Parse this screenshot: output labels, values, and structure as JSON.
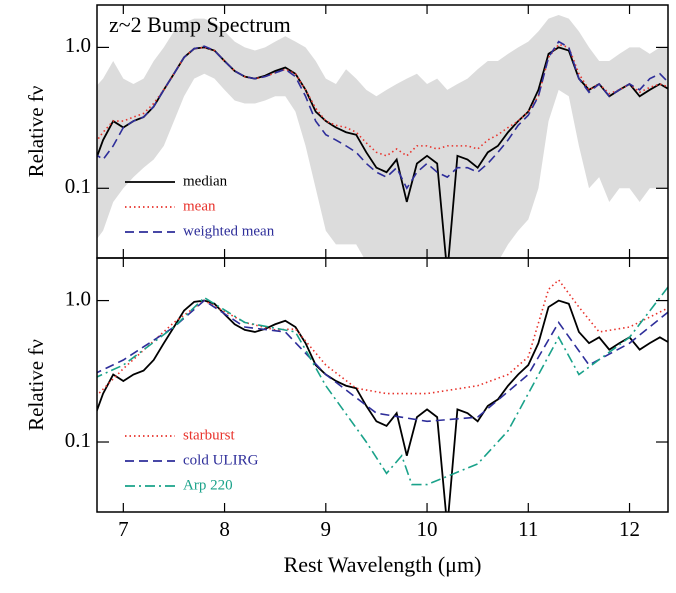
{
  "chart_data": [
    {
      "type": "line",
      "title": "z~2 Bump Spectrum",
      "ylabel": "Relative fν",
      "log_y": true,
      "legend": "lower left",
      "xlim": [
        6.74,
        12.38
      ],
      "xticks": [
        7,
        8,
        9,
        10,
        11,
        12
      ],
      "ylim": [
        0.032,
        2.0
      ],
      "yticks": [
        0.1,
        {
          "value": 1.0,
          "label": "1.0"
        }
      ],
      "x": [
        6.7,
        6.8,
        6.9,
        7.0,
        7.1,
        7.2,
        7.3,
        7.4,
        7.5,
        7.6,
        7.7,
        7.8,
        7.9,
        8.0,
        8.1,
        8.2,
        8.3,
        8.4,
        8.5,
        8.6,
        8.7,
        8.8,
        8.9,
        9.0,
        9.1,
        9.2,
        9.3,
        9.4,
        9.5,
        9.6,
        9.7,
        9.8,
        9.9,
        10.0,
        10.1,
        10.2,
        10.3,
        10.4,
        10.5,
        10.6,
        10.7,
        10.8,
        10.9,
        11.0,
        11.1,
        11.2,
        11.3,
        11.4,
        11.5,
        11.6,
        11.7,
        11.8,
        11.9,
        12.0,
        12.1,
        12.2,
        12.3,
        12.4
      ],
      "band": {
        "color": "#dcdcdc",
        "lower": [
          0.04,
          0.05,
          0.08,
          0.1,
          0.12,
          0.14,
          0.16,
          0.2,
          0.3,
          0.45,
          0.6,
          0.65,
          0.6,
          0.5,
          0.42,
          0.4,
          0.4,
          0.42,
          0.45,
          0.45,
          0.35,
          0.2,
          0.1,
          0.05,
          0.04,
          0.04,
          0.04,
          0.03,
          0.03,
          0.03,
          0.03,
          0.03,
          0.03,
          0.03,
          0.03,
          0.03,
          0.03,
          0.03,
          0.03,
          0.03,
          0.03,
          0.04,
          0.05,
          0.06,
          0.1,
          0.3,
          0.5,
          0.45,
          0.2,
          0.1,
          0.12,
          0.08,
          0.1,
          0.1,
          0.08,
          0.1,
          0.1,
          0.1
        ],
        "upper": [
          0.5,
          0.6,
          0.8,
          0.6,
          0.55,
          0.6,
          0.8,
          1.0,
          1.3,
          1.5,
          1.6,
          1.6,
          1.5,
          1.3,
          1.1,
          1.0,
          0.95,
          1.0,
          1.1,
          1.2,
          1.1,
          1.0,
          0.8,
          0.6,
          0.55,
          0.7,
          0.6,
          0.5,
          0.45,
          0.5,
          0.55,
          0.6,
          0.65,
          0.55,
          0.6,
          0.5,
          0.55,
          0.6,
          0.7,
          0.8,
          0.8,
          0.9,
          1.0,
          1.1,
          1.3,
          1.6,
          1.7,
          1.6,
          1.3,
          1.0,
          0.8,
          0.8,
          0.9,
          1.0,
          1.0,
          0.9,
          1.0,
          1.0
        ]
      },
      "series": [
        {
          "name": "median",
          "color": "#000000",
          "style": "solid",
          "values": [
            0.14,
            0.22,
            0.3,
            0.27,
            0.3,
            0.32,
            0.38,
            0.5,
            0.65,
            0.85,
            0.98,
            1.0,
            0.95,
            0.8,
            0.68,
            0.62,
            0.6,
            0.63,
            0.68,
            0.72,
            0.65,
            0.5,
            0.35,
            0.3,
            0.27,
            0.25,
            0.24,
            0.18,
            0.14,
            0.13,
            0.16,
            0.08,
            0.15,
            0.17,
            0.15,
            0.025,
            0.17,
            0.16,
            0.14,
            0.18,
            0.2,
            0.25,
            0.3,
            0.35,
            0.5,
            0.9,
            1.0,
            0.95,
            0.6,
            0.5,
            0.55,
            0.45,
            0.5,
            0.55,
            0.45,
            0.5,
            0.55,
            0.5
          ]
        },
        {
          "name": "mean",
          "color": "#e8322b",
          "style": "dotted",
          "values": [
            0.2,
            0.25,
            0.3,
            0.3,
            0.32,
            0.34,
            0.4,
            0.5,
            0.65,
            0.85,
            0.98,
            1.0,
            0.95,
            0.8,
            0.68,
            0.62,
            0.6,
            0.62,
            0.66,
            0.7,
            0.65,
            0.5,
            0.37,
            0.3,
            0.28,
            0.27,
            0.25,
            0.21,
            0.18,
            0.17,
            0.19,
            0.17,
            0.2,
            0.2,
            0.19,
            0.2,
            0.2,
            0.2,
            0.19,
            0.22,
            0.24,
            0.27,
            0.3,
            0.35,
            0.45,
            0.85,
            1.05,
            1.0,
            0.65,
            0.5,
            0.55,
            0.47,
            0.5,
            0.55,
            0.48,
            0.52,
            0.55,
            0.52
          ]
        },
        {
          "name": "weighted mean",
          "color": "#2e2e9a",
          "style": "dashed",
          "values": [
            0.18,
            0.16,
            0.2,
            0.27,
            0.3,
            0.32,
            0.38,
            0.5,
            0.65,
            0.85,
            0.98,
            1.02,
            0.95,
            0.8,
            0.68,
            0.62,
            0.6,
            0.62,
            0.66,
            0.7,
            0.62,
            0.45,
            0.3,
            0.24,
            0.22,
            0.2,
            0.18,
            0.15,
            0.13,
            0.12,
            0.14,
            0.1,
            0.13,
            0.15,
            0.13,
            0.12,
            0.14,
            0.14,
            0.13,
            0.15,
            0.18,
            0.22,
            0.28,
            0.33,
            0.45,
            0.85,
            1.1,
            1.0,
            0.6,
            0.48,
            0.55,
            0.45,
            0.5,
            0.55,
            0.5,
            0.6,
            0.65,
            0.55
          ]
        }
      ]
    },
    {
      "type": "line",
      "ylabel": "Relative fν",
      "xlabel": "Rest Wavelength (μm)",
      "log_y": true,
      "legend": "lower left",
      "xlim": [
        6.74,
        12.38
      ],
      "xticks": [
        7,
        8,
        9,
        10,
        11,
        12
      ],
      "ylim": [
        0.032,
        2.0
      ],
      "yticks": [
        0.1,
        {
          "value": 1.0,
          "label": "1.0"
        }
      ],
      "x": [
        6.7,
        6.8,
        6.9,
        7.0,
        7.1,
        7.2,
        7.3,
        7.4,
        7.5,
        7.6,
        7.7,
        7.8,
        7.9,
        8.0,
        8.1,
        8.2,
        8.3,
        8.4,
        8.5,
        8.6,
        8.7,
        8.8,
        8.9,
        9.0,
        9.1,
        9.2,
        9.3,
        9.4,
        9.5,
        9.6,
        9.7,
        9.8,
        9.9,
        10.0,
        10.1,
        10.2,
        10.3,
        10.4,
        10.5,
        10.6,
        10.7,
        10.8,
        10.9,
        11.0,
        11.1,
        11.2,
        11.3,
        11.4,
        11.5,
        11.6,
        11.7,
        11.8,
        11.9,
        12.0,
        12.1,
        12.2,
        12.3,
        12.4
      ],
      "series": [
        {
          "color": "#000000",
          "style": "solid",
          "values": [
            0.14,
            0.22,
            0.3,
            0.27,
            0.3,
            0.32,
            0.38,
            0.5,
            0.65,
            0.85,
            0.98,
            1.0,
            0.95,
            0.8,
            0.68,
            0.62,
            0.6,
            0.63,
            0.68,
            0.72,
            0.65,
            0.5,
            0.35,
            0.3,
            0.27,
            0.25,
            0.24,
            0.18,
            0.14,
            0.13,
            0.16,
            0.08,
            0.15,
            0.17,
            0.15,
            0.025,
            0.17,
            0.16,
            0.14,
            0.18,
            0.2,
            0.25,
            0.3,
            0.35,
            0.5,
            0.9,
            1.0,
            0.95,
            0.6,
            0.5,
            0.55,
            0.45,
            0.5,
            0.55,
            0.45,
            0.5,
            0.55,
            0.5
          ]
        },
        {
          "name": "starburst",
          "color": "#e8322b",
          "style": "dotted",
          "x": [
            6.7,
            7.0,
            7.5,
            7.8,
            8.2,
            8.5,
            8.7,
            9.0,
            9.3,
            9.6,
            10.0,
            10.5,
            10.8,
            11.0,
            11.2,
            11.3,
            11.5,
            11.7,
            12.0,
            12.4
          ],
          "values": [
            0.2,
            0.33,
            0.7,
            1.0,
            0.7,
            0.62,
            0.63,
            0.35,
            0.24,
            0.22,
            0.22,
            0.25,
            0.3,
            0.4,
            1.2,
            1.4,
            0.9,
            0.6,
            0.65,
            0.9
          ]
        },
        {
          "name": "cold ULIRG",
          "color": "#2e2e9a",
          "style": "dashed",
          "x": [
            6.7,
            7.0,
            7.5,
            7.8,
            8.2,
            8.6,
            9.0,
            9.5,
            10.0,
            10.5,
            11.0,
            11.3,
            11.6,
            12.0,
            12.4
          ],
          "values": [
            0.3,
            0.38,
            0.65,
            1.0,
            0.65,
            0.6,
            0.3,
            0.16,
            0.14,
            0.15,
            0.3,
            0.7,
            0.35,
            0.5,
            0.85
          ]
        },
        {
          "name": "Arp 220",
          "color": "#1aa28a",
          "style": "dashdot",
          "x": [
            6.7,
            7.0,
            7.5,
            7.8,
            8.2,
            8.7,
            9.0,
            9.4,
            9.6,
            9.75,
            9.85,
            10.0,
            10.5,
            10.8,
            11.0,
            11.3,
            11.5,
            12.0,
            12.4
          ],
          "values": [
            0.28,
            0.35,
            0.65,
            1.05,
            0.7,
            0.6,
            0.25,
            0.1,
            0.06,
            0.08,
            0.05,
            0.05,
            0.07,
            0.12,
            0.22,
            0.55,
            0.3,
            0.55,
            1.3
          ]
        }
      ]
    }
  ]
}
